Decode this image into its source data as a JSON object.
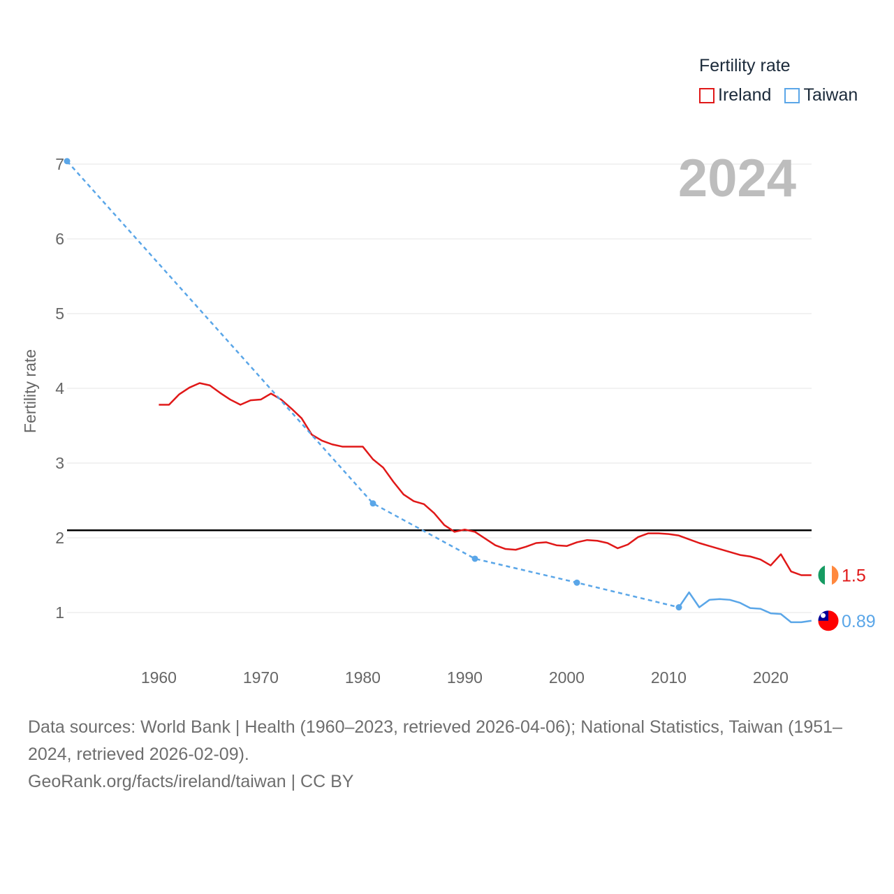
{
  "legend": {
    "title": "Fertility rate",
    "items": [
      {
        "label": "Ireland",
        "color": "#e01818"
      },
      {
        "label": "Taiwan",
        "color": "#5aa6e8"
      }
    ]
  },
  "chart_data": {
    "type": "line",
    "title": "",
    "year_label": "2024",
    "xlabel": "",
    "ylabel": "Fertility rate",
    "xlim": [
      1951,
      2024
    ],
    "ylim": [
      0.5,
      7
    ],
    "x_ticks": [
      1960,
      1970,
      1980,
      1990,
      2000,
      2010,
      2020
    ],
    "y_ticks": [
      1,
      2,
      3,
      4,
      5,
      6,
      7
    ],
    "reference_line": {
      "value": 2.1,
      "color": "#000000"
    },
    "series": [
      {
        "name": "Ireland",
        "color": "#e01818",
        "end_label": "1.5",
        "flag": "ireland-flag",
        "x": [
          1960,
          1961,
          1962,
          1963,
          1964,
          1965,
          1966,
          1967,
          1968,
          1969,
          1970,
          1971,
          1972,
          1973,
          1974,
          1975,
          1976,
          1977,
          1978,
          1979,
          1980,
          1981,
          1982,
          1983,
          1984,
          1985,
          1986,
          1987,
          1988,
          1989,
          1990,
          1991,
          1992,
          1993,
          1994,
          1995,
          1996,
          1997,
          1998,
          1999,
          2000,
          2001,
          2002,
          2003,
          2004,
          2005,
          2006,
          2007,
          2008,
          2009,
          2010,
          2011,
          2012,
          2013,
          2014,
          2015,
          2016,
          2017,
          2018,
          2019,
          2020,
          2021,
          2022,
          2023,
          2024
        ],
        "values": [
          3.78,
          3.78,
          3.92,
          4.01,
          4.07,
          4.04,
          3.94,
          3.85,
          3.78,
          3.84,
          3.85,
          3.93,
          3.85,
          3.73,
          3.6,
          3.38,
          3.3,
          3.25,
          3.22,
          3.22,
          3.22,
          3.05,
          2.94,
          2.75,
          2.58,
          2.49,
          2.45,
          2.33,
          2.17,
          2.08,
          2.11,
          2.08,
          1.99,
          1.9,
          1.85,
          1.84,
          1.88,
          1.93,
          1.94,
          1.9,
          1.89,
          1.94,
          1.97,
          1.96,
          1.93,
          1.86,
          1.91,
          2.01,
          2.06,
          2.06,
          2.05,
          2.03,
          1.98,
          1.93,
          1.89,
          1.85,
          1.81,
          1.77,
          1.75,
          1.71,
          1.63,
          1.78,
          1.55,
          1.5,
          1.5
        ]
      },
      {
        "name": "Taiwan",
        "color": "#5aa6e8",
        "end_label": "0.89",
        "flag": "taiwan-flag",
        "sparse_points": {
          "x": [
            1951,
            1981,
            1991,
            2001,
            2011
          ],
          "values": [
            7.04,
            2.46,
            1.72,
            1.4,
            1.07
          ]
        },
        "x": [
          2011,
          2012,
          2013,
          2014,
          2015,
          2016,
          2017,
          2018,
          2019,
          2020,
          2021,
          2022,
          2023,
          2024
        ],
        "values": [
          1.07,
          1.27,
          1.07,
          1.17,
          1.18,
          1.17,
          1.13,
          1.06,
          1.05,
          0.99,
          0.98,
          0.87,
          0.87,
          0.89
        ]
      }
    ]
  },
  "footer": {
    "sources": "Data sources: World Bank | Health (1960–2023, retrieved 2026-04-06); National Statistics, Taiwan (1951–2024, retrieved 2026-02-09).",
    "credit": "GeoRank.org/facts/ireland/taiwan | CC BY"
  }
}
